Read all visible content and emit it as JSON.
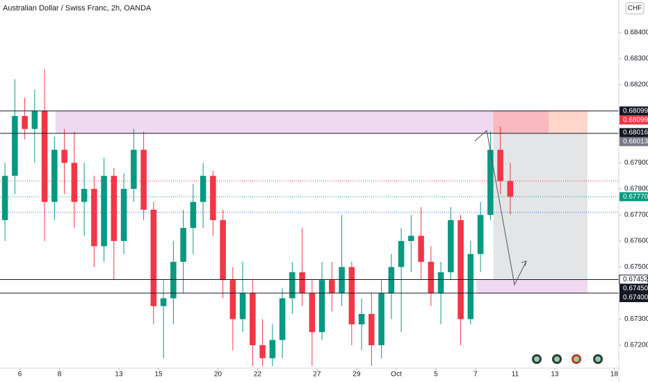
{
  "chart_data": {
    "type": "candlestick",
    "title": "Australian Dollar / Swiss Franc, 2h, OANDA",
    "currency": "CHF",
    "up_color": "#089981",
    "down_color": "#f23645",
    "x": [
      0.5,
      1.5,
      2.5,
      3.5,
      4.5,
      5.5,
      6.5,
      7.5,
      8.5,
      9.5,
      10.5,
      11.5,
      12.5,
      13.5,
      14.5,
      15.5,
      16.5,
      17.5,
      18.5,
      19.5,
      20.5,
      21.5,
      22.5,
      23.5,
      24.5,
      25.5,
      26.5,
      27.5,
      28.5,
      29.5,
      30.5,
      31.5,
      32.5,
      33.5,
      34.5,
      35.5,
      36.5,
      37.5,
      38.5,
      39.5,
      40.5,
      41.5,
      42.5,
      43.5,
      44.5,
      45.5,
      46.5,
      47.5,
      48.5,
      49.5,
      50.5,
      51.5
    ],
    "open": [
      0.6768,
      0.6785,
      0.6808,
      0.6803,
      0.681,
      0.6775,
      0.6795,
      0.679,
      0.6775,
      0.678,
      0.6758,
      0.6785,
      0.676,
      0.678,
      0.6795,
      0.6772,
      0.6735,
      0.6738,
      0.6752,
      0.6765,
      0.6775,
      0.6785,
      0.6768,
      0.6745,
      0.673,
      0.674,
      0.672,
      0.6715,
      0.6722,
      0.6738,
      0.6748,
      0.674,
      0.6725,
      0.6745,
      0.674,
      0.675,
      0.6728,
      0.6732,
      0.672,
      0.674,
      0.675,
      0.676,
      0.6762,
      0.6752,
      0.674,
      0.6748,
      0.6768,
      0.673,
      0.6755,
      0.677,
      0.6795,
      0.6783
    ],
    "high": [
      0.679,
      0.6822,
      0.6815,
      0.6818,
      0.6826,
      0.68,
      0.6803,
      0.6802,
      0.679,
      0.6785,
      0.6792,
      0.6788,
      0.6786,
      0.6803,
      0.6802,
      0.6775,
      0.6745,
      0.676,
      0.6772,
      0.6782,
      0.679,
      0.6787,
      0.6772,
      0.675,
      0.6752,
      0.6745,
      0.673,
      0.6728,
      0.6742,
      0.6752,
      0.6765,
      0.6745,
      0.6752,
      0.6752,
      0.677,
      0.6752,
      0.6738,
      0.674,
      0.6745,
      0.6755,
      0.6765,
      0.677,
      0.6773,
      0.6758,
      0.6752,
      0.6773,
      0.677,
      0.676,
      0.6775,
      0.6802,
      0.6804,
      0.679
    ],
    "low": [
      0.676,
      0.6778,
      0.6799,
      0.679,
      0.676,
      0.6768,
      0.6778,
      0.6765,
      0.6762,
      0.675,
      0.6752,
      0.6745,
      0.6755,
      0.6775,
      0.6768,
      0.6728,
      0.6715,
      0.6728,
      0.674,
      0.6755,
      0.6765,
      0.6762,
      0.6738,
      0.6718,
      0.6725,
      0.6712,
      0.6712,
      0.6712,
      0.6715,
      0.6732,
      0.6735,
      0.6712,
      0.6722,
      0.6733,
      0.6735,
      0.672,
      0.6718,
      0.6712,
      0.6715,
      0.673,
      0.6725,
      0.6748,
      0.6745,
      0.6735,
      0.6728,
      0.6745,
      0.672,
      0.6728,
      0.6748,
      0.6768,
      0.6778,
      0.677
    ],
    "close": [
      0.6785,
      0.6808,
      0.6803,
      0.681,
      0.6775,
      0.6795,
      0.679,
      0.6775,
      0.678,
      0.6758,
      0.6785,
      0.676,
      0.678,
      0.6795,
      0.6772,
      0.6735,
      0.6738,
      0.6752,
      0.6765,
      0.6775,
      0.6785,
      0.6768,
      0.6745,
      0.673,
      0.674,
      0.672,
      0.6715,
      0.6722,
      0.6738,
      0.6748,
      0.674,
      0.6725,
      0.6745,
      0.674,
      0.675,
      0.6728,
      0.6732,
      0.672,
      0.674,
      0.675,
      0.676,
      0.6762,
      0.6752,
      0.674,
      0.6748,
      0.6768,
      0.673,
      0.6755,
      0.677,
      0.6795,
      0.6783,
      0.6777
    ],
    "xlim": [
      0,
      62.46
    ],
    "xticks": [
      {
        "value": 2,
        "label": "6"
      },
      {
        "value": 6,
        "label": "8"
      },
      {
        "value": 12,
        "label": "13"
      },
      {
        "value": 16,
        "label": "15"
      },
      {
        "value": 22,
        "label": "20"
      },
      {
        "value": 26,
        "label": "22"
      },
      {
        "value": 32,
        "label": "27"
      },
      {
        "value": 36,
        "label": "29"
      },
      {
        "value": 40,
        "label": "Oct"
      },
      {
        "value": 44,
        "label": "5"
      },
      {
        "value": 48,
        "label": "7"
      },
      {
        "value": 52,
        "label": "11"
      },
      {
        "value": 56,
        "label": "13"
      },
      {
        "value": 62,
        "label": "18"
      }
    ],
    "ylim": [
      0.67112,
      0.68525
    ],
    "yticks": [
      {
        "value": 0.684,
        "label": "0.68400"
      },
      {
        "value": 0.683,
        "label": "0.68300"
      },
      {
        "value": 0.682,
        "label": "0.68200"
      },
      {
        "value": 0.679,
        "label": "0.67900"
      },
      {
        "value": 0.678,
        "label": "0.67800"
      },
      {
        "value": 0.677,
        "label": "0.67700"
      },
      {
        "value": 0.676,
        "label": "0.67600"
      },
      {
        "value": 0.675,
        "label": "0.67500"
      },
      {
        "value": 0.673,
        "label": "0.67300"
      },
      {
        "value": 0.672,
        "label": "0.67200"
      }
    ],
    "levels": [
      {
        "value": 0.68099,
        "label": "0.68099",
        "color": "#131722",
        "line": true
      },
      {
        "value": 0.68099,
        "label": "0.68099",
        "color": "#f23645",
        "line": false
      },
      {
        "value": 0.68016,
        "label": "0.68016",
        "color": "#131722",
        "line": false
      },
      {
        "value": 0.68013,
        "label": "0.68013",
        "color": "#787b86",
        "line": true
      },
      {
        "value": 0.6777,
        "label": "0.67770",
        "color": "#089981",
        "line": false
      },
      {
        "value": 0.67452,
        "label": "0.67452",
        "color": "#ffffff",
        "line": true
      },
      {
        "value": 0.6745,
        "label": "0.67450",
        "color": "#131722",
        "line": false
      },
      {
        "value": 0.674,
        "label": "0.67400",
        "color": "#131722",
        "line": true
      }
    ],
    "dotted_lines": [
      {
        "value": 0.6783,
        "color": "#f23645"
      },
      {
        "value": 0.6777,
        "color": "#089981"
      },
      {
        "value": 0.6771,
        "color": "#2962ff"
      }
    ],
    "zones": [
      {
        "x1": 5.6,
        "x2": 49.8,
        "y1": 0.68013,
        "y2": 0.68099,
        "color": "rgba(206,147,216,0.35)"
      },
      {
        "x1": 49.8,
        "x2": 55.4,
        "y1": 0.68013,
        "y2": 0.68099,
        "color": "rgba(242,54,69,0.35)"
      },
      {
        "x1": 55.4,
        "x2": 59.3,
        "y1": 0.68013,
        "y2": 0.68099,
        "color": "rgba(255,138,101,0.35)"
      },
      {
        "x1": 49.8,
        "x2": 59.3,
        "y1": 0.67452,
        "y2": 0.68013,
        "color": "rgba(120,123,134,0.2)"
      },
      {
        "x1": 48.1,
        "x2": 59.3,
        "y1": 0.674,
        "y2": 0.67452,
        "color": "rgba(206,147,216,0.35)"
      }
    ]
  }
}
